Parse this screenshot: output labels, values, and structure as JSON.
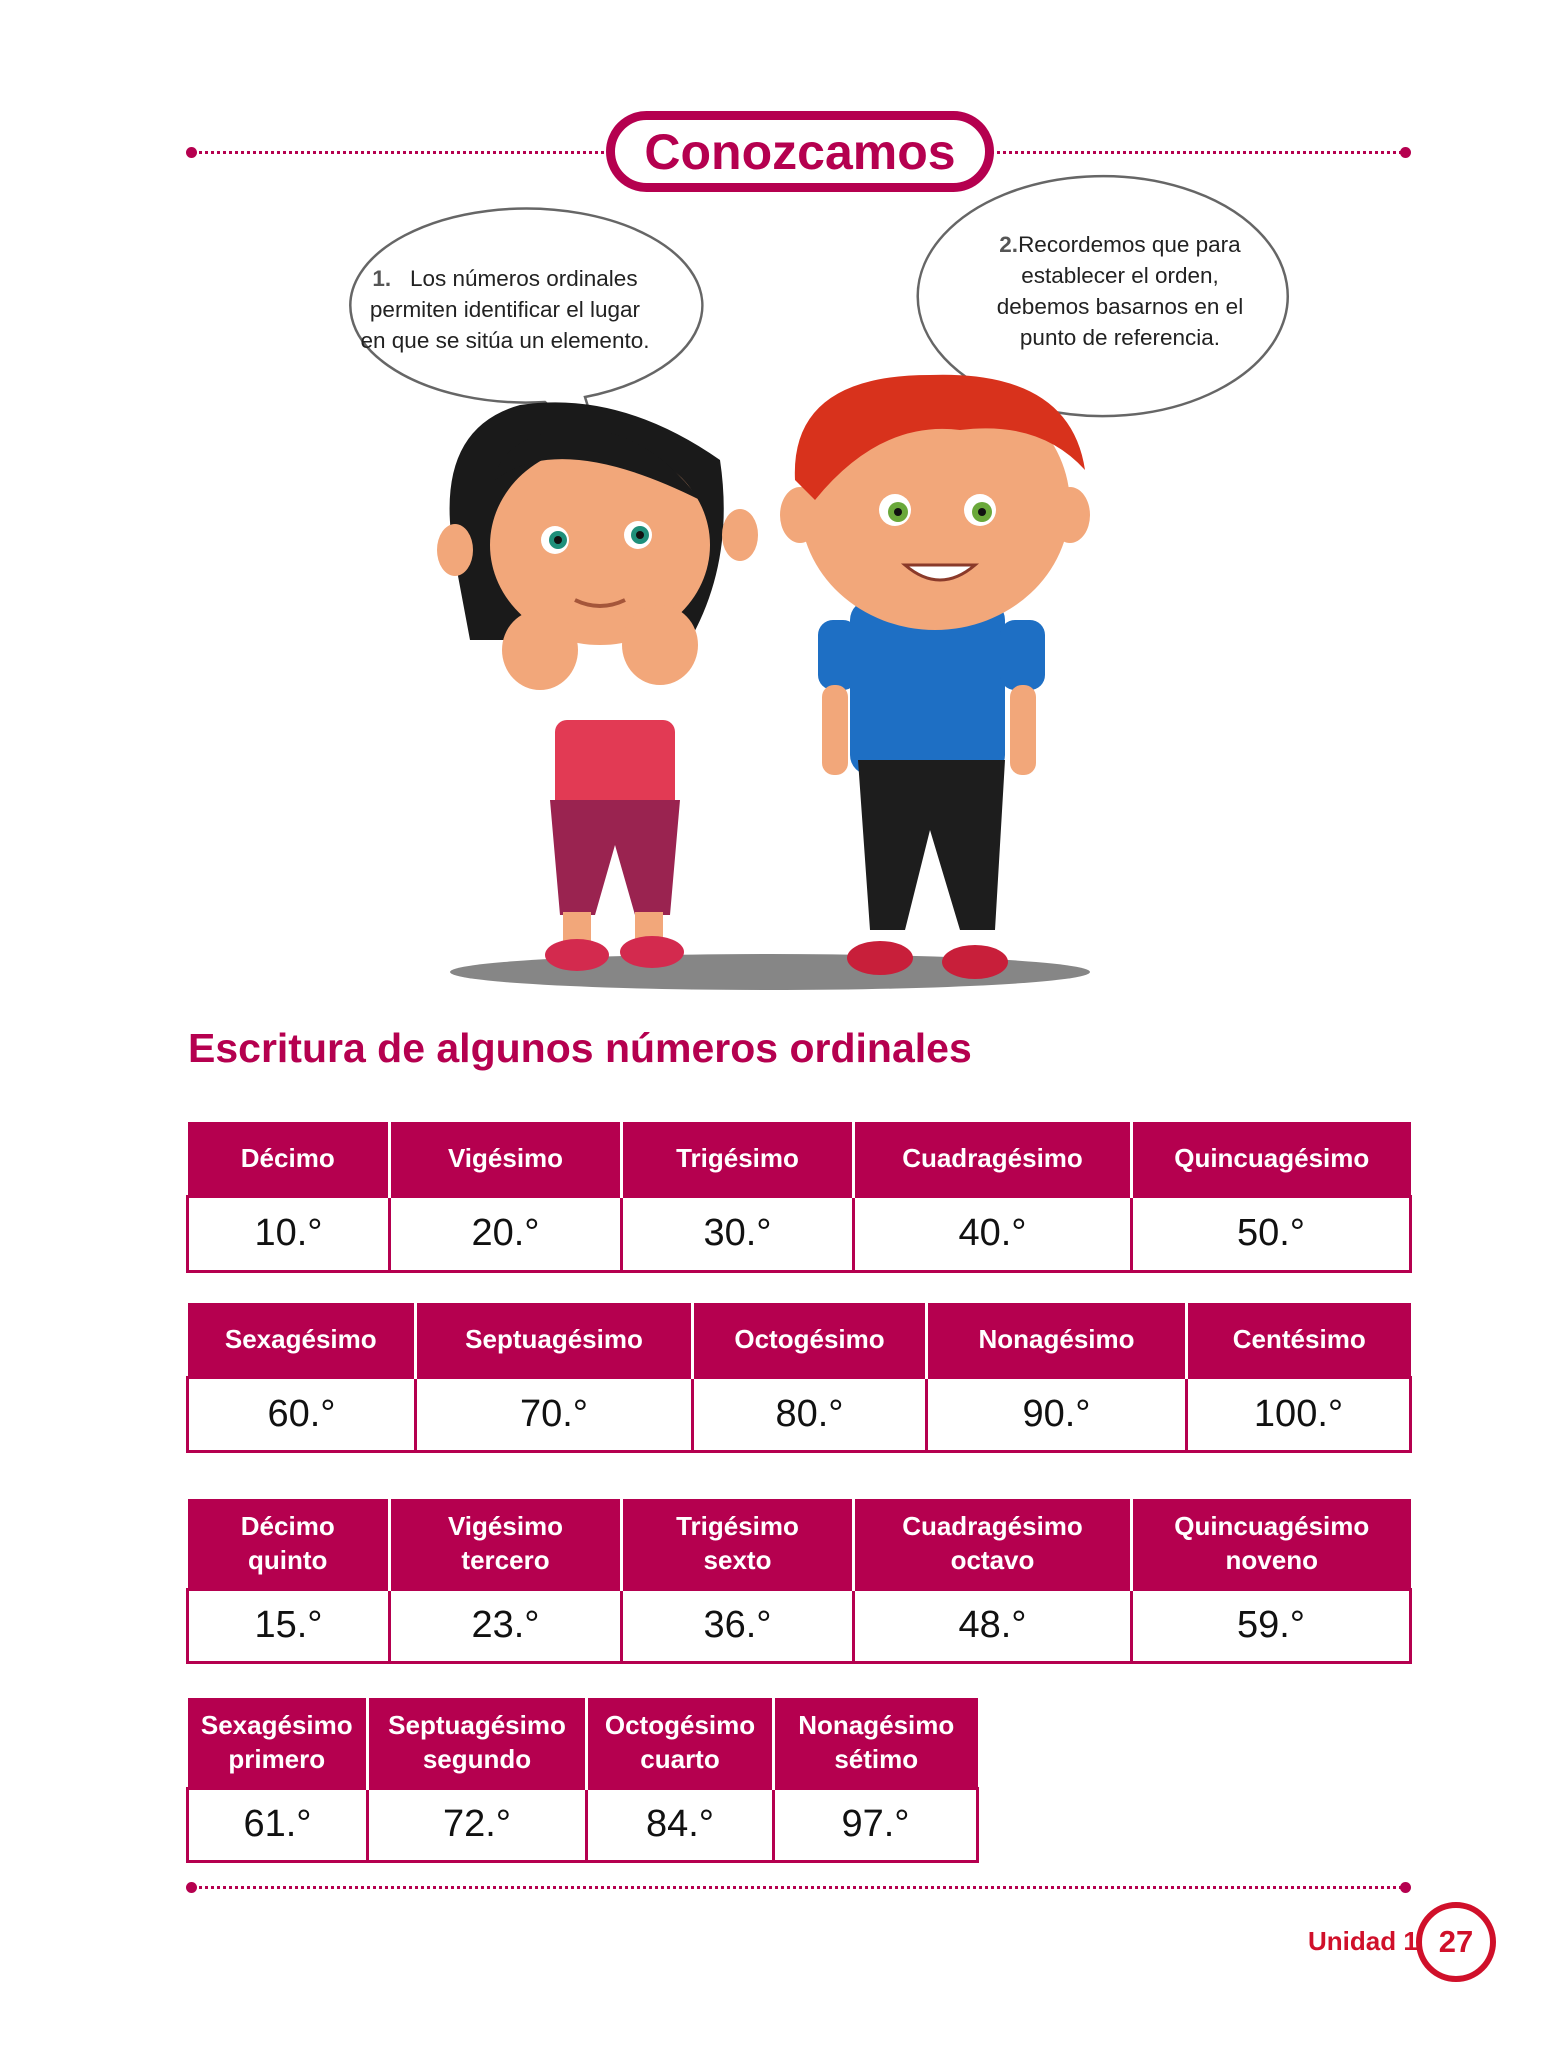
{
  "section_title": "Conozcamos",
  "bubbles": [
    {
      "number": "1.",
      "text_lines": [
        "Los números ordinales",
        "permiten identificar el lugar",
        "en que se sitúa un elemento."
      ]
    },
    {
      "number": "2.",
      "text_lines": [
        "Recordemos que para",
        "establecer el orden,",
        "debemos basarnos en el",
        "punto de referencia."
      ]
    }
  ],
  "heading": "Escritura de algunos números ordinales",
  "tables": [
    {
      "headers": [
        [
          "Décimo"
        ],
        [
          "Vigésimo"
        ],
        [
          "Trigésimo"
        ],
        [
          "Cuadragésimo"
        ],
        [
          "Quincuagésimo"
        ]
      ],
      "values": [
        "10.°",
        "20.°",
        "30.°",
        "40.°",
        "50.°"
      ]
    },
    {
      "headers": [
        [
          "Sexagésimo"
        ],
        [
          "Septuagésimo"
        ],
        [
          "Octogésimo"
        ],
        [
          "Nonagésimo"
        ],
        [
          "Centésimo"
        ]
      ],
      "values": [
        "60.°",
        "70.°",
        "80.°",
        "90.°",
        "100.°"
      ]
    },
    {
      "headers": [
        [
          "Décimo",
          "quinto"
        ],
        [
          "Vigésimo",
          "tercero"
        ],
        [
          "Trigésimo",
          "sexto"
        ],
        [
          "Cuadragésimo",
          "octavo"
        ],
        [
          "Quincuagésimo",
          "noveno"
        ]
      ],
      "values": [
        "15.°",
        "23.°",
        "36.°",
        "48.°",
        "59.°"
      ]
    },
    {
      "headers": [
        [
          "Sexagésimo",
          "primero"
        ],
        [
          "Septuagésimo",
          "segundo"
        ],
        [
          "Octogésimo",
          "cuarto"
        ],
        [
          "Nonagésimo",
          "sétimo"
        ]
      ],
      "values": [
        "61.°",
        "72.°",
        "84.°",
        "97.°"
      ]
    }
  ],
  "footer": {
    "unit_label": "Unidad 1",
    "page_number": "27"
  },
  "colors": {
    "accent": "#b5004f",
    "footer": "#d0102a"
  },
  "illustrations": [
    "girl-character",
    "boy-character"
  ]
}
